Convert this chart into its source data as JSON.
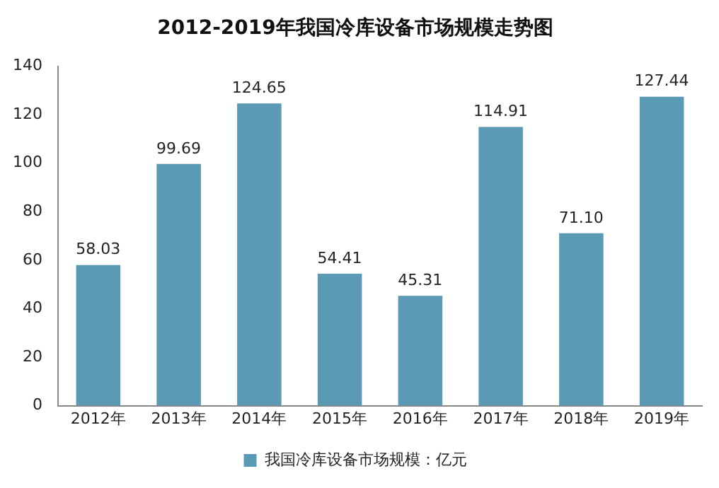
{
  "chart_data": {
    "type": "bar",
    "title": "2012-2019年我国冷库设备市场规模走势图",
    "categories": [
      "2012年",
      "2013年",
      "2014年",
      "2015年",
      "2016年",
      "2017年",
      "2018年",
      "2019年"
    ],
    "series": [
      {
        "name": "我国冷库设备市场规模：亿元",
        "color": "#5b9ab5",
        "values": [
          58.03,
          99.69,
          124.65,
          54.41,
          45.31,
          114.91,
          71.1,
          127.44
        ],
        "value_labels": [
          "58.03",
          "99.69",
          "124.65",
          "54.41",
          "45.31",
          "114.91",
          "71.10",
          "127.44"
        ]
      }
    ],
    "ylim": [
      0,
      140
    ],
    "yticks": [
      0,
      20,
      40,
      60,
      80,
      100,
      120,
      140
    ],
    "grid": false,
    "legend": "bottom"
  }
}
